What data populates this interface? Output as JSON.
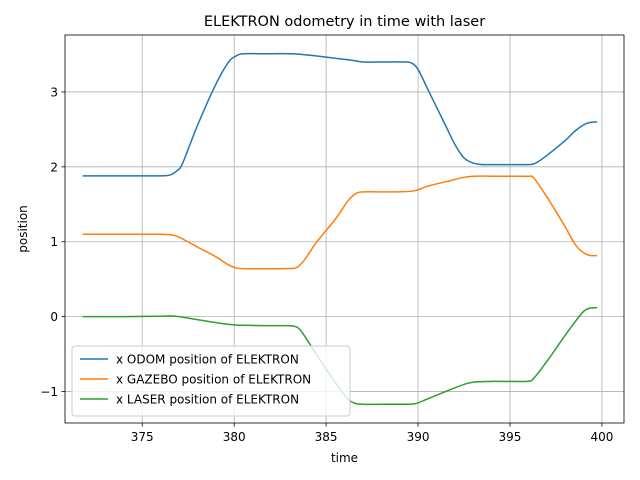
{
  "chart_data": {
    "type": "line",
    "title": "ELEKTRON odometry in time with laser",
    "xlabel": "time",
    "ylabel": "position",
    "xlim": [
      370.8,
      401.2
    ],
    "ylim": [
      -1.42,
      3.76
    ],
    "xticks": [
      375,
      380,
      385,
      390,
      395,
      400
    ],
    "yticks": [
      -1,
      0,
      1,
      2,
      3
    ],
    "grid": true,
    "legend_position": "lower-left",
    "series": [
      {
        "name": "x ODOM position of ELEKTRON",
        "color": "#1f77b4",
        "x": [
          371.8,
          374.0,
          376.0,
          376.5,
          376.9,
          377.2,
          378.0,
          379.0,
          379.7,
          380.1,
          380.5,
          381.5,
          383.0,
          383.7,
          384.5,
          385.5,
          386.5,
          387.0,
          388.0,
          389.0,
          389.6,
          390.0,
          390.5,
          391.0,
          391.5,
          392.0,
          392.5,
          393.0,
          393.5,
          394.0,
          395.0,
          396.0,
          396.4,
          397.0,
          398.0,
          398.5,
          399.0,
          399.3,
          399.7
        ],
        "y": [
          1.88,
          1.88,
          1.88,
          1.89,
          1.95,
          2.05,
          2.55,
          3.1,
          3.4,
          3.48,
          3.51,
          3.51,
          3.51,
          3.5,
          3.48,
          3.45,
          3.42,
          3.4,
          3.4,
          3.4,
          3.39,
          3.3,
          3.05,
          2.8,
          2.55,
          2.3,
          2.12,
          2.05,
          2.03,
          2.03,
          2.03,
          2.03,
          2.05,
          2.15,
          2.35,
          2.47,
          2.56,
          2.59,
          2.6
        ]
      },
      {
        "name": "x GAZEBO position of ELEKTRON",
        "color": "#ff7f0e",
        "x": [
          371.8,
          374.0,
          376.0,
          376.6,
          377.0,
          378.0,
          379.0,
          379.7,
          380.2,
          381.0,
          382.0,
          383.0,
          383.4,
          383.8,
          384.5,
          385.5,
          386.2,
          386.6,
          387.0,
          388.0,
          389.0,
          389.8,
          390.5,
          391.5,
          392.5,
          393.0,
          394.0,
          395.0,
          396.0,
          396.3,
          397.0,
          398.0,
          398.5,
          398.9,
          399.3,
          399.7
        ],
        "y": [
          1.1,
          1.1,
          1.1,
          1.09,
          1.06,
          0.93,
          0.8,
          0.69,
          0.645,
          0.64,
          0.64,
          0.642,
          0.655,
          0.75,
          1.0,
          1.3,
          1.55,
          1.64,
          1.665,
          1.665,
          1.668,
          1.68,
          1.74,
          1.8,
          1.86,
          1.875,
          1.875,
          1.874,
          1.873,
          1.85,
          1.6,
          1.2,
          0.98,
          0.87,
          0.82,
          0.815
        ]
      },
      {
        "name": "x LASER position of ELEKTRON",
        "color": "#2ca02c",
        "x": [
          371.8,
          374.0,
          376.0,
          376.5,
          377.0,
          378.0,
          379.0,
          380.0,
          380.5,
          381.5,
          382.5,
          383.2,
          383.6,
          384.2,
          385.0,
          386.0,
          386.5,
          387.0,
          388.0,
          389.0,
          389.8,
          390.3,
          391.0,
          392.0,
          392.7,
          393.2,
          394.0,
          395.0,
          396.0,
          396.3,
          397.0,
          398.0,
          398.6,
          399.0,
          399.3,
          399.7
        ],
        "y": [
          0.0,
          0.0,
          0.005,
          0.01,
          0.0,
          -0.04,
          -0.08,
          -0.11,
          -0.115,
          -0.12,
          -0.12,
          -0.125,
          -0.18,
          -0.4,
          -0.7,
          -1.05,
          -1.15,
          -1.17,
          -1.17,
          -1.17,
          -1.165,
          -1.12,
          -1.05,
          -0.95,
          -0.89,
          -0.87,
          -0.865,
          -0.865,
          -0.862,
          -0.82,
          -0.6,
          -0.25,
          -0.05,
          0.07,
          0.11,
          0.12
        ]
      }
    ]
  }
}
